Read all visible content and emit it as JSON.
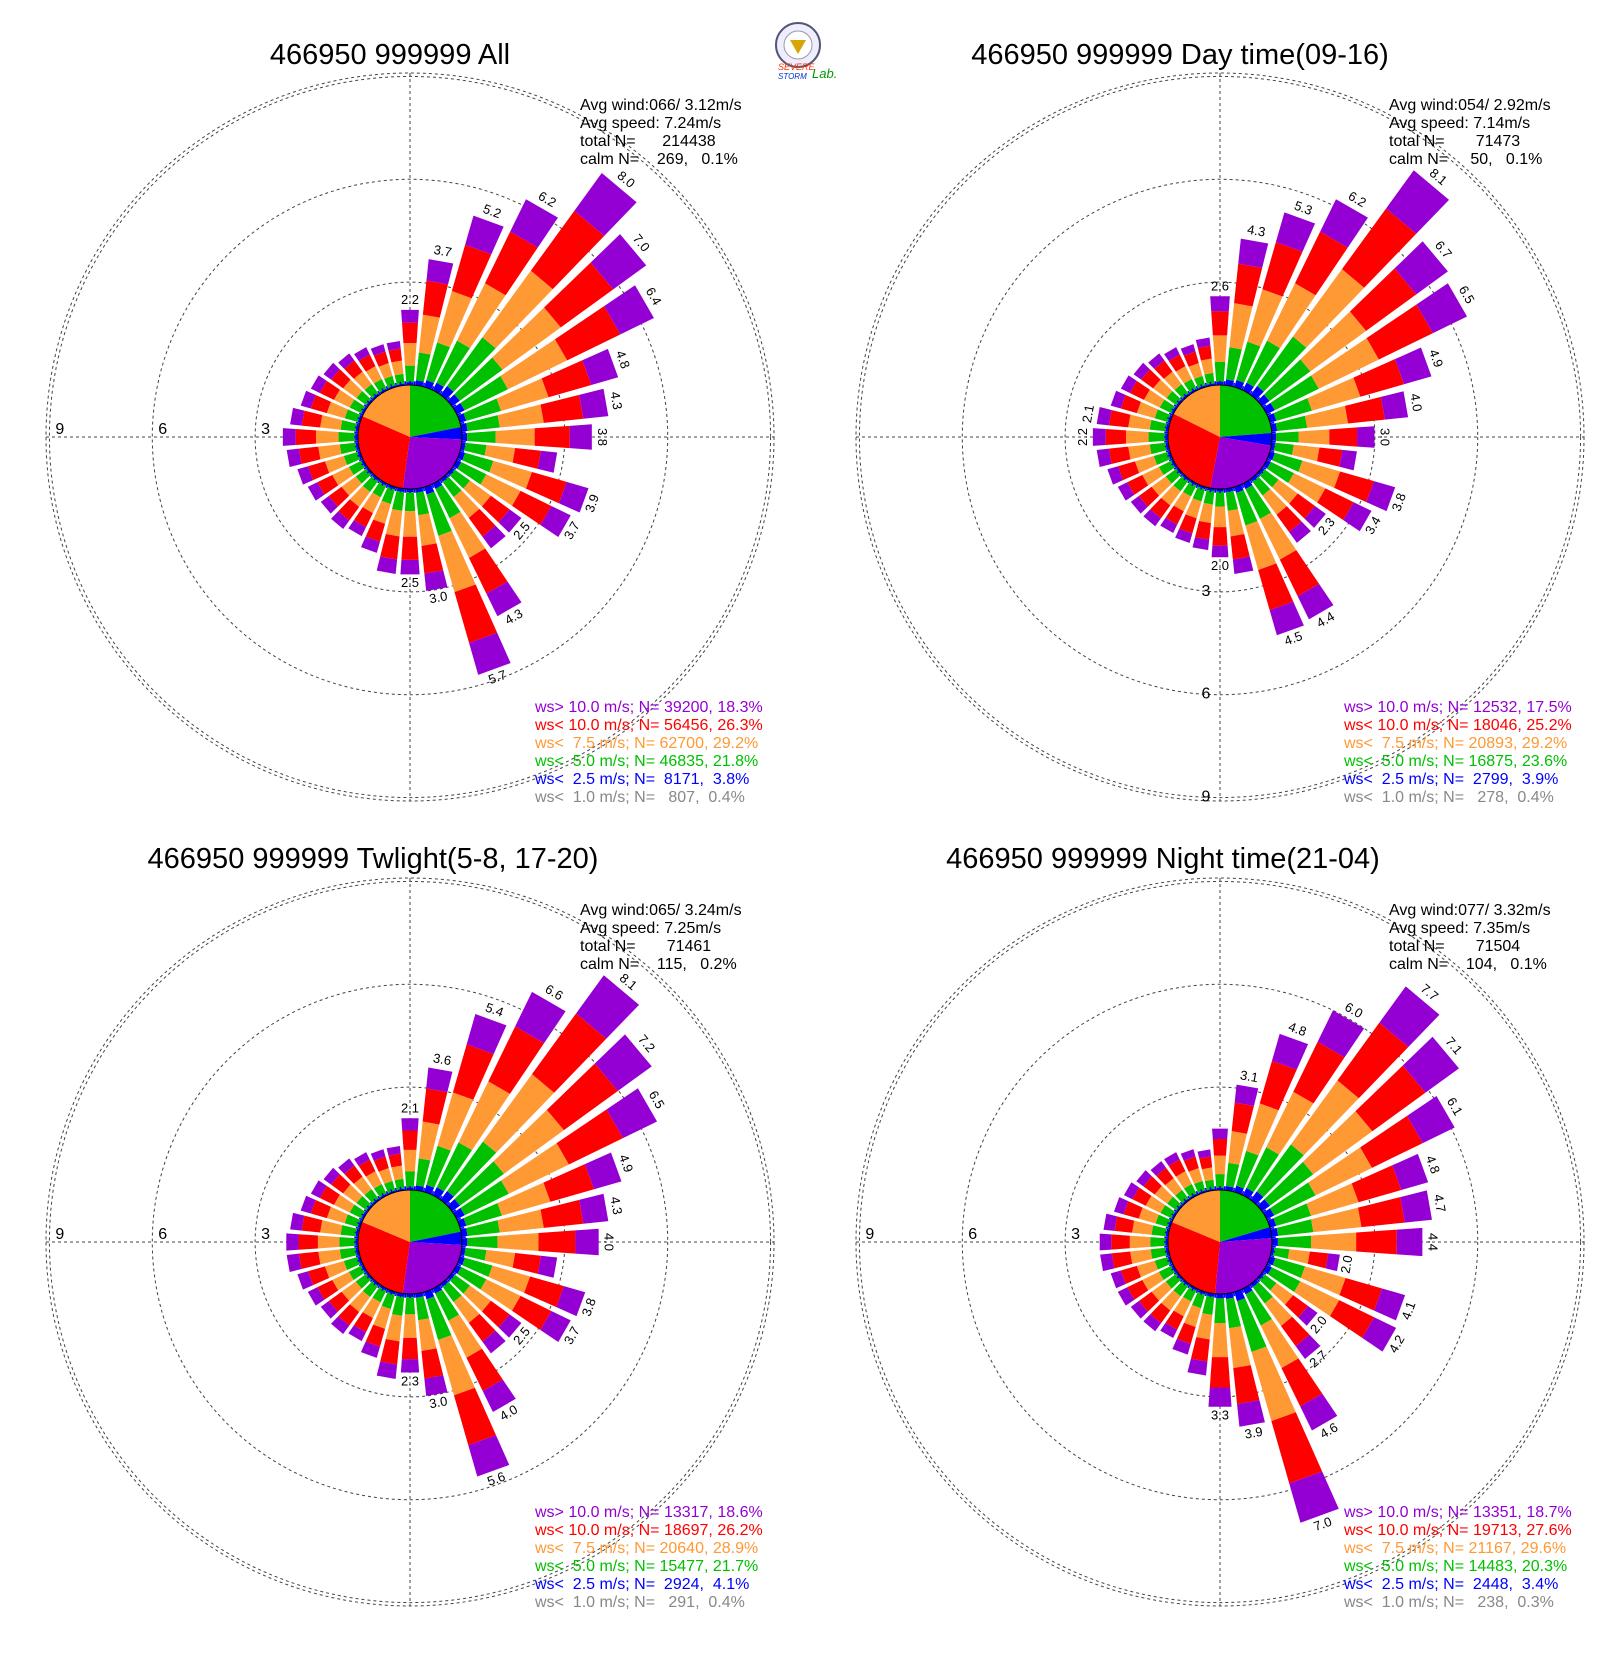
{
  "logo": {
    "text_top": "SEVERE",
    "text_bottom": "STORM",
    "text_right": "Lab."
  },
  "colors": {
    "gt10": "#9400d3",
    "lt10": "#ff0000",
    "lt7_5": "#ff9933",
    "lt5": "#00c000",
    "lt2_5": "#0000ff",
    "lt1": "#888888"
  },
  "chart_data": [
    {
      "type": "wind-rose",
      "title": "466950 999999 All",
      "stats": [
        "Avg wind:066/ 3.12m/s",
        "Avg speed: 7.24m/s",
        "total N=      214438",
        "calm N=    269,   0.1%"
      ],
      "legend": [
        {
          "label": "ws> 10.0 m/s; N= 39200, 18.3%",
          "color_key": "gt10"
        },
        {
          "label": "ws< 10.0 m/s; N= 56456, 26.3%",
          "color_key": "lt10"
        },
        {
          "label": "ws<  7.5 m/s; N= 62700, 29.2%",
          "color_key": "lt7_5"
        },
        {
          "label": "ws<  5.0 m/s; N= 46835, 21.8%",
          "color_key": "lt5"
        },
        {
          "label": "ws<  2.5 m/s; N=  8171,  3.8%",
          "color_key": "lt2_5"
        },
        {
          "label": "ws<  1.0 m/s; N=   807,  0.4%",
          "color_key": "lt1"
        }
      ],
      "ring_labels": [
        "3",
        "6",
        "9"
      ],
      "ring_label_side": "left",
      "rmax": 9.5,
      "pie_percent": [
        21.8,
        3.8,
        26.3,
        29.2,
        18.3
      ],
      "pie_order_keys": [
        "lt5",
        "lt2_5",
        "gt10",
        "lt10",
        "lt7_5"
      ],
      "dirs": [
        0,
        10,
        20,
        30,
        40,
        50,
        60,
        70,
        80,
        90,
        100,
        110,
        120,
        130,
        140,
        150,
        160,
        170,
        180,
        190,
        200,
        210,
        220,
        230,
        240,
        250,
        260,
        270,
        280,
        290,
        300,
        310,
        320,
        330,
        340,
        350
      ],
      "freq": [
        2.2,
        3.7,
        5.2,
        6.2,
        8.0,
        7.0,
        6.4,
        4.8,
        4.3,
        3.8,
        2.8,
        3.9,
        3.7,
        2.5,
        2.5,
        4.3,
        5.7,
        3.0,
        2.5,
        2.5,
        2.0,
        1.7,
        1.8,
        1.7,
        1.8,
        1.9,
        2.1,
        2.2,
        2.0,
        1.8,
        1.7,
        1.6,
        1.5,
        1.4,
        1.3,
        1.3
      ],
      "bar_labels": [
        "2.2",
        "3.7",
        "5.2",
        "6.2",
        "8.0",
        "7.0",
        "6.4",
        "4.8",
        "4.3",
        "3.8",
        "",
        "3.9",
        "3.7",
        "2.5",
        "",
        "4.3",
        "5.7",
        "3.0",
        "2.5",
        "",
        "",
        "",
        "",
        "",
        "",
        "",
        "",
        "",
        "",
        "",
        "",
        "",
        "",
        "",
        "",
        ""
      ]
    },
    {
      "type": "wind-rose",
      "title": "466950 999999 Day time(09-16)",
      "stats": [
        "Avg wind:054/ 2.92m/s",
        "Avg speed: 7.14m/s",
        "total N=       71473",
        "calm N=     50,   0.1%"
      ],
      "legend": [
        {
          "label": "ws> 10.0 m/s; N= 12532, 17.5%",
          "color_key": "gt10"
        },
        {
          "label": "ws< 10.0 m/s; N= 18046, 25.2%",
          "color_key": "lt10"
        },
        {
          "label": "ws<  7.5 m/s; N= 20893, 29.2%",
          "color_key": "lt7_5"
        },
        {
          "label": "ws<  5.0 m/s; N= 16875, 23.6%",
          "color_key": "lt5"
        },
        {
          "label": "ws<  2.5 m/s; N=  2799,  3.9%",
          "color_key": "lt2_5"
        },
        {
          "label": "ws<  1.0 m/s; N=   278,  0.4%",
          "color_key": "lt1"
        }
      ],
      "ring_labels": [
        "3",
        "6",
        "9"
      ],
      "ring_label_side": "bottom",
      "rmax": 9.5,
      "pie_percent": [
        23.6,
        3.9,
        25.2,
        29.2,
        17.5
      ],
      "pie_order_keys": [
        "lt5",
        "lt2_5",
        "gt10",
        "lt10",
        "lt7_5"
      ],
      "dirs": [
        0,
        10,
        20,
        30,
        40,
        50,
        60,
        70,
        80,
        90,
        100,
        110,
        120,
        130,
        140,
        150,
        160,
        170,
        180,
        190,
        200,
        210,
        220,
        230,
        240,
        250,
        260,
        270,
        280,
        290,
        300,
        310,
        320,
        330,
        340,
        350
      ],
      "freq": [
        2.6,
        4.3,
        5.3,
        6.2,
        8.1,
        6.7,
        6.5,
        4.9,
        4.0,
        3.0,
        2.5,
        3.8,
        3.4,
        2.3,
        2.3,
        4.4,
        4.5,
        2.5,
        2.0,
        1.8,
        1.7,
        1.6,
        1.7,
        1.7,
        1.8,
        1.9,
        2.1,
        2.2,
        2.1,
        1.8,
        1.7,
        1.6,
        1.5,
        1.4,
        1.3,
        1.4
      ],
      "bar_labels": [
        "2.6",
        "4.3",
        "5.3",
        "6.2",
        "8.1",
        "6.7",
        "6.5",
        "4.9",
        "4.0",
        "3.0",
        "",
        "3.8",
        "3.4",
        "2.3",
        "",
        "4.4",
        "4.5",
        "",
        "2.0",
        "",
        "",
        "",
        "",
        "",
        "",
        "",
        "",
        "2.2",
        "2.1",
        "",
        "",
        "",
        "",
        "",
        "",
        ""
      ]
    },
    {
      "type": "wind-rose",
      "title": "466950 999999 Twlight(5-8, 17-20)",
      "stats": [
        "Avg wind:065/ 3.24m/s",
        "Avg speed: 7.25m/s",
        "total N=       71461",
        "calm N=    115,   0.2%"
      ],
      "legend": [
        {
          "label": "ws> 10.0 m/s; N= 13317, 18.6%",
          "color_key": "gt10"
        },
        {
          "label": "ws< 10.0 m/s; N= 18697, 26.2%",
          "color_key": "lt10"
        },
        {
          "label": "ws<  7.5 m/s; N= 20640, 28.9%",
          "color_key": "lt7_5"
        },
        {
          "label": "ws<  5.0 m/s; N= 15477, 21.7%",
          "color_key": "lt5"
        },
        {
          "label": "ws<  2.5 m/s; N=  2924,  4.1%",
          "color_key": "lt2_5"
        },
        {
          "label": "ws<  1.0 m/s; N=   291,  0.4%",
          "color_key": "lt1"
        }
      ],
      "ring_labels": [
        "3",
        "6",
        "9"
      ],
      "ring_label_side": "left",
      "rmax": 9.5,
      "pie_percent": [
        21.7,
        4.1,
        26.2,
        28.9,
        18.6
      ],
      "pie_order_keys": [
        "lt5",
        "lt2_5",
        "gt10",
        "lt10",
        "lt7_5"
      ],
      "dirs": [
        0,
        10,
        20,
        30,
        40,
        50,
        60,
        70,
        80,
        90,
        100,
        110,
        120,
        130,
        140,
        150,
        160,
        170,
        180,
        190,
        200,
        210,
        220,
        230,
        240,
        250,
        260,
        270,
        280,
        290,
        300,
        310,
        320,
        330,
        340,
        350
      ],
      "freq": [
        2.1,
        3.6,
        5.4,
        6.6,
        8.1,
        7.2,
        6.5,
        4.9,
        4.3,
        4.0,
        2.8,
        3.8,
        3.7,
        2.5,
        2.5,
        4.0,
        5.6,
        3.0,
        2.3,
        2.5,
        2.0,
        1.7,
        1.8,
        1.7,
        1.8,
        1.9,
        2.1,
        2.1,
        2.0,
        1.8,
        1.7,
        1.6,
        1.5,
        1.4,
        1.3,
        1.3
      ],
      "bar_labels": [
        "2.1",
        "3.6",
        "5.4",
        "6.6",
        "8.1",
        "7.2",
        "6.5",
        "4.9",
        "4.3",
        "4.0",
        "",
        "3.8",
        "3.7",
        "2.5",
        "",
        "4.0",
        "5.6",
        "3.0",
        "2.3",
        "",
        "",
        "",
        "",
        "",
        "",
        "",
        "",
        "",
        "",
        "",
        "",
        "",
        "",
        "",
        "",
        ""
      ]
    },
    {
      "type": "wind-rose",
      "title": "466950 999999 Night time(21-04)",
      "stats": [
        "Avg wind:077/ 3.32m/s",
        "Avg speed: 7.35m/s",
        "total N=       71504",
        "calm N=    104,   0.1%"
      ],
      "legend": [
        {
          "label": "ws> 10.0 m/s; N= 13351, 18.7%",
          "color_key": "gt10"
        },
        {
          "label": "ws< 10.0 m/s; N= 19713, 27.6%",
          "color_key": "lt10"
        },
        {
          "label": "ws<  7.5 m/s; N= 21167, 29.6%",
          "color_key": "lt7_5"
        },
        {
          "label": "ws<  5.0 m/s; N= 14483, 20.3%",
          "color_key": "lt5"
        },
        {
          "label": "ws<  2.5 m/s; N=  2448,  3.4%",
          "color_key": "lt2_5"
        },
        {
          "label": "ws<  1.0 m/s; N=   238,  0.3%",
          "color_key": "lt1"
        }
      ],
      "ring_labels": [
        "3",
        "6",
        "9"
      ],
      "ring_label_side": "left",
      "rmax": 9.5,
      "pie_percent": [
        20.3,
        3.4,
        27.6,
        29.6,
        18.7
      ],
      "pie_order_keys": [
        "lt5",
        "lt2_5",
        "gt10",
        "lt10",
        "lt7_5"
      ],
      "dirs": [
        0,
        10,
        20,
        30,
        40,
        50,
        60,
        70,
        80,
        90,
        100,
        110,
        120,
        130,
        140,
        150,
        160,
        170,
        180,
        190,
        200,
        210,
        220,
        230,
        240,
        250,
        260,
        270,
        280,
        290,
        300,
        310,
        320,
        330,
        340,
        350
      ],
      "freq": [
        1.8,
        3.1,
        4.8,
        6.0,
        7.7,
        7.1,
        6.1,
        4.8,
        4.7,
        4.4,
        2.0,
        4.1,
        4.2,
        2.0,
        2.7,
        4.6,
        7.0,
        3.9,
        3.3,
        2.4,
        1.9,
        1.6,
        1.7,
        1.7,
        1.8,
        1.8,
        2.0,
        2.0,
        1.9,
        1.7,
        1.6,
        1.5,
        1.4,
        1.4,
        1.3,
        1.2
      ],
      "bar_labels": [
        "",
        "3.1",
        "4.8",
        "6.0",
        "7.7",
        "7.1",
        "6.1",
        "4.8",
        "4.7",
        "4.4",
        "2.0",
        "4.1",
        "4.2",
        "2.0",
        "2.7",
        "4.6",
        "7.0",
        "3.9",
        "3.3",
        "",
        "",
        "",
        "",
        "",
        "",
        "",
        "",
        "",
        "",
        "",
        "",
        "",
        "",
        "",
        "",
        ""
      ]
    }
  ]
}
